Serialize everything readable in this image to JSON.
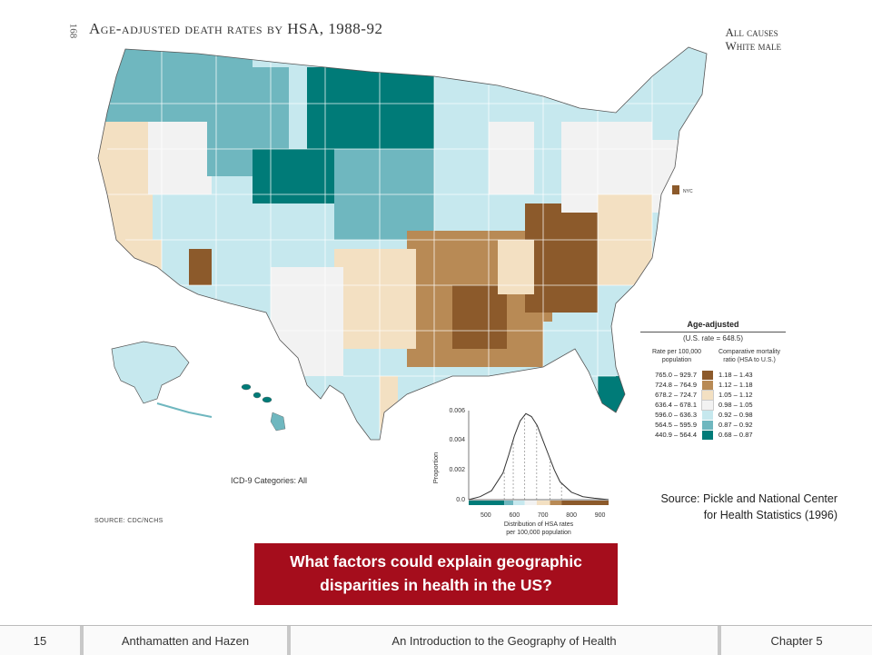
{
  "figure": {
    "page_number": "168",
    "title": "Age-adjusted death rates by HSA, 1988-92",
    "subtitle_line1": "All causes",
    "subtitle_line2": "White male",
    "icd_label": "ICD-9 Categories: All",
    "source_label": "SOURCE: CDC/NCHS",
    "nyc_label": "NYC"
  },
  "legend": {
    "title": "Age-adjusted",
    "us_rate": "(U.S. rate = 648.5)",
    "col1_header": "Rate per 100,000 population",
    "col2_header": "Comparative mortality ratio (HSA to U.S.)",
    "classes": [
      {
        "range": "765.0 – 929.7",
        "ratio": "1.18 – 1.43",
        "color": "#8c5a2b"
      },
      {
        "range": "724.8 – 764.9",
        "ratio": "1.12 – 1.18",
        "color": "#b88a55"
      },
      {
        "range": "678.2 – 724.7",
        "ratio": "1.05 – 1.12",
        "color": "#f3e0c2"
      },
      {
        "range": "636.4 – 678.1",
        "ratio": "0.98 – 1.05",
        "color": "#f2f2f2"
      },
      {
        "range": "596.0 – 636.3",
        "ratio": "0.92 – 0.98",
        "color": "#c6e8ee"
      },
      {
        "range": "564.5 – 595.9",
        "ratio": "0.87 – 0.92",
        "color": "#6fb7bf"
      },
      {
        "range": "440.9 – 564.4",
        "ratio": "0.68 – 0.87",
        "color": "#007b78"
      }
    ]
  },
  "distribution": {
    "ylabel": "Proportion",
    "xlabel_line1": "Distribution of HSA rates",
    "xlabel_line2": "per 100,000 population",
    "y_ticks": [
      "0.006",
      "0.004",
      "0.002",
      "0.0"
    ],
    "x_ticks": [
      "500",
      "600",
      "700",
      "800",
      "900"
    ]
  },
  "chart_data": {
    "type": "area",
    "title": "",
    "xlabel": "Distribution of HSA rates per 100,000 population",
    "ylabel": "Proportion",
    "xlim": [
      440,
      930
    ],
    "ylim": [
      0,
      0.006
    ],
    "x": [
      440,
      480,
      520,
      560,
      580,
      600,
      620,
      640,
      660,
      680,
      700,
      720,
      740,
      760,
      800,
      840,
      880,
      930
    ],
    "series": [
      {
        "values": [
          0.0,
          0.0002,
          0.0006,
          0.0018,
          0.003,
          0.0043,
          0.0053,
          0.0058,
          0.0056,
          0.005,
          0.004,
          0.003,
          0.002,
          0.0012,
          0.0005,
          0.0002,
          0.0001,
          0.0
        ]
      }
    ],
    "class_breaks": [
      564.5,
      596.0,
      636.4,
      678.2,
      724.8,
      765.0
    ],
    "class_colors": [
      "#007b78",
      "#6fb7bf",
      "#c6e8ee",
      "#f2f2f2",
      "#f3e0c2",
      "#b88a55",
      "#8c5a2b"
    ]
  },
  "slide": {
    "source_line1": "Source: Pickle and National Center",
    "source_line2": "for Health Statistics (1996)",
    "question_line1": "What factors could explain geographic",
    "question_line2": "disparities in health in the US?"
  },
  "footer": {
    "slide_number": "15",
    "authors": "Anthamatten and Hazen",
    "book_title": "An Introduction to the Geography of Health",
    "chapter": "Chapter 5"
  }
}
